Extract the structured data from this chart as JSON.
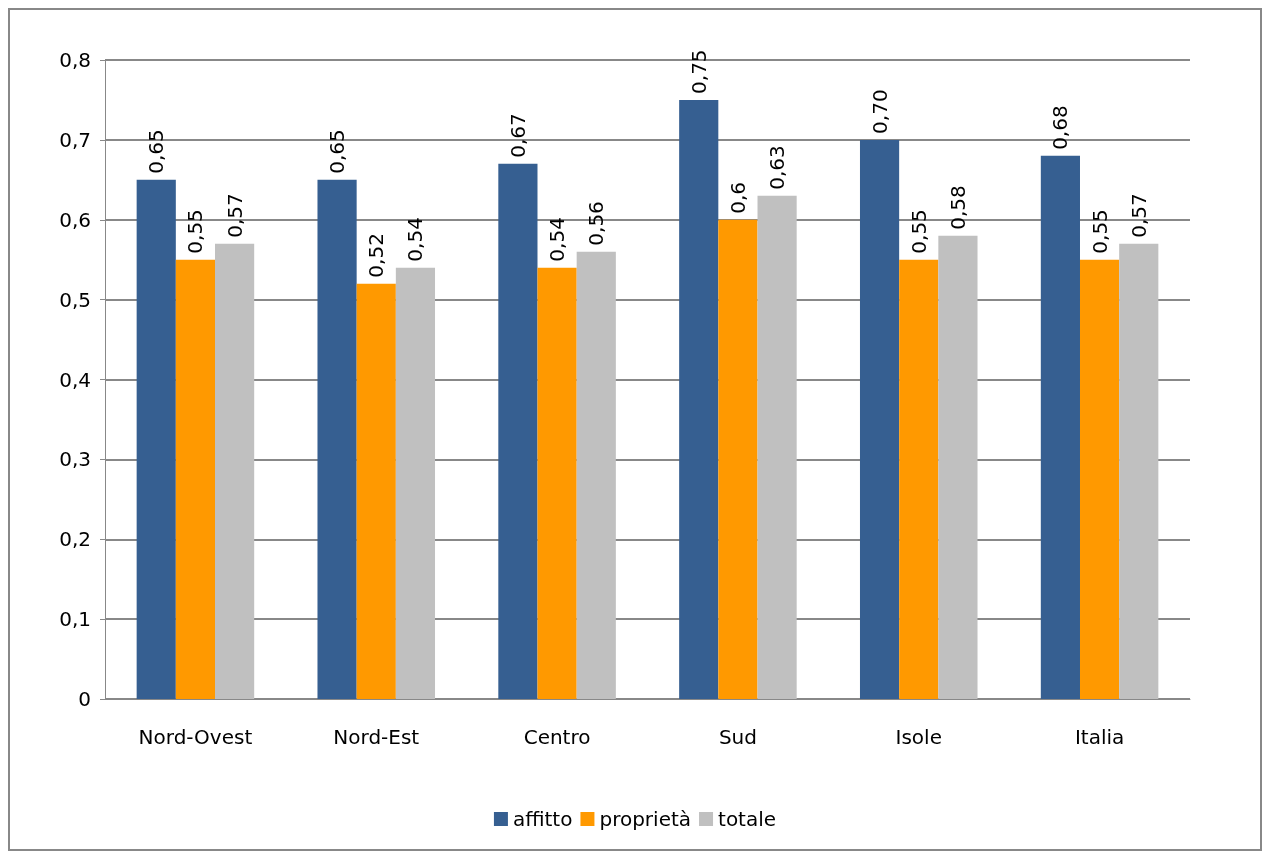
{
  "chart_data": {
    "type": "bar",
    "categories": [
      "Nord-Ovest",
      "Nord-Est",
      "Centro",
      "Sud",
      "Isole",
      "Italia"
    ],
    "series": [
      {
        "name": "affitto",
        "color": "#365f91",
        "values": [
          0.65,
          0.65,
          0.67,
          0.75,
          0.7,
          0.68
        ],
        "value_labels": [
          "0,65",
          "0,65",
          "0,67",
          "0,75",
          "0,70",
          "0,68"
        ]
      },
      {
        "name": "proprietà",
        "color": "#ff9900",
        "values": [
          0.55,
          0.52,
          0.54,
          0.6,
          0.55,
          0.55
        ],
        "value_labels": [
          "0,55",
          "0,52",
          "0,54",
          "0,6",
          "0,55",
          "0,55"
        ]
      },
      {
        "name": "totale",
        "color": "#c0c0c0",
        "values": [
          0.57,
          0.54,
          0.56,
          0.63,
          0.58,
          0.57
        ],
        "value_labels": [
          "0,57",
          "0,54",
          "0,56",
          "0,63",
          "0,58",
          "0,57"
        ]
      }
    ],
    "ylim": [
      0,
      0.8
    ],
    "yticks": [
      {
        "value": 0,
        "label": "0"
      },
      {
        "value": 0.1,
        "label": "0,1"
      },
      {
        "value": 0.2,
        "label": "0,2"
      },
      {
        "value": 0.3,
        "label": "0,3"
      },
      {
        "value": 0.4,
        "label": "0,4"
      },
      {
        "value": 0.5,
        "label": "0,5"
      },
      {
        "value": 0.6,
        "label": "0,6"
      },
      {
        "value": 0.7,
        "label": "0,7"
      },
      {
        "value": 0.8,
        "label": "0,8"
      }
    ],
    "grid": "y",
    "legend": "bottom"
  }
}
